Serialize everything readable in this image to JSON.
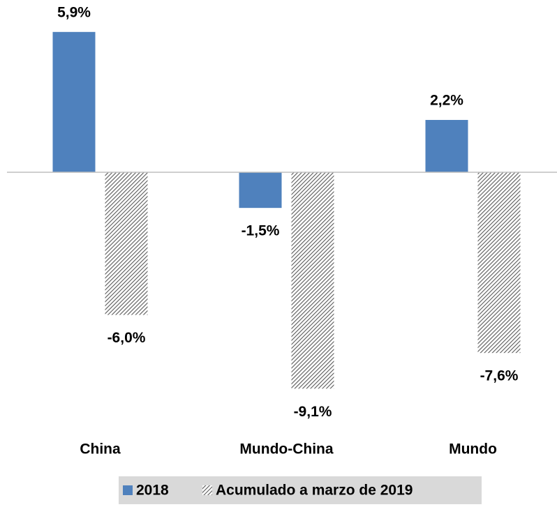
{
  "chart_data": {
    "type": "bar",
    "categories": [
      "China",
      "Mundo-China",
      "Mundo"
    ],
    "series": [
      {
        "name": "2018",
        "color": "#4f81bd",
        "values": [
          5.9,
          -1.5,
          2.2
        ],
        "value_labels": [
          "5,9%",
          "-1,5%",
          "2,2%"
        ]
      },
      {
        "name": "Acumulado a marzo de 2019",
        "color": "#595959",
        "pattern": "diagonal-hatch",
        "values": [
          -6.0,
          -9.1,
          -7.6
        ],
        "value_labels": [
          "-6,0%",
          "-9,1%",
          "-7,6%"
        ]
      }
    ],
    "legend": "bottom"
  }
}
